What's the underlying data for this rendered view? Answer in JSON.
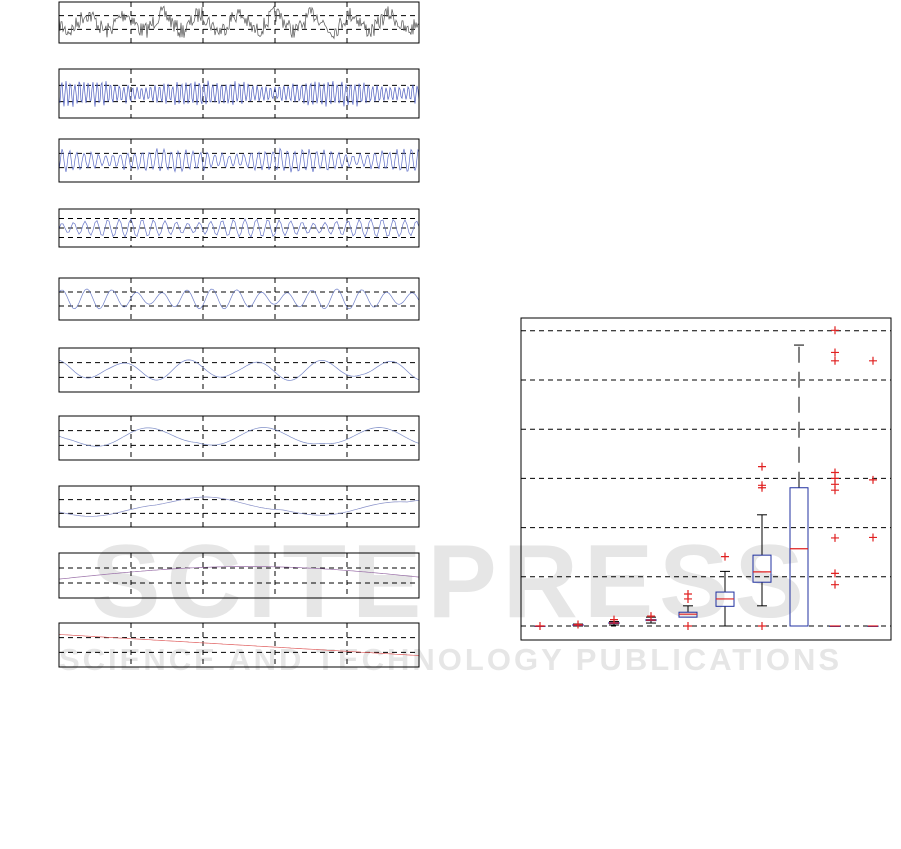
{
  "watermark": {
    "brand": "SCITEPRESS",
    "tagline": "SCIENCE AND TECHNOLOGY PUBLICATIONS"
  },
  "chart_data": [
    {
      "type": "line",
      "title": "",
      "panels": [
        {
          "color": "#555555",
          "character": "raw signal, high frequency"
        },
        {
          "color": "#5060c0",
          "character": "detail, high frequency"
        },
        {
          "color": "#6070c8",
          "character": "detail, medium-high frequency"
        },
        {
          "color": "#6a78c8",
          "character": "detail, medium frequency"
        },
        {
          "color": "#7080c8",
          "character": "detail, lower frequency"
        },
        {
          "color": "#7888c8",
          "character": "slow oscillation"
        },
        {
          "color": "#8090c8",
          "character": "slower oscillation"
        },
        {
          "color": "#8890c8",
          "character": "very slow trend"
        },
        {
          "color": "#9a70a8",
          "character": "smooth trend"
        },
        {
          "color": "#e06060",
          "character": "residual trend, decreasing"
        }
      ],
      "grid": true
    },
    {
      "type": "boxplot",
      "title": "",
      "xlabel": "",
      "ylabel": "",
      "ylim": [
        -0.2,
        6.4
      ],
      "grid": true,
      "box_color": "#2030a0",
      "median_color": "#e02020",
      "outlier_color": "#e02020",
      "boxes": [
        {
          "q1": 0,
          "median": 0,
          "q3": 0,
          "low": 0,
          "high": 0,
          "outliers": [
            0
          ]
        },
        {
          "q1": 0.01,
          "median": 0.02,
          "q3": 0.03,
          "low": 0,
          "high": 0.04,
          "outliers": [
            0.03
          ]
        },
        {
          "q1": 0.05,
          "median": 0.06,
          "q3": 0.07,
          "low": 0.02,
          "high": 0.09,
          "outliers": [
            0.13
          ]
        },
        {
          "q1": 0.11,
          "median": 0.12,
          "q3": 0.13,
          "low": 0.06,
          "high": 0.18,
          "outliers": [
            0.2
          ]
        },
        {
          "q1": 0.18,
          "median": 0.24,
          "q3": 0.28,
          "low": 0.18,
          "high": 0.41,
          "outliers": [
            0,
            0.55,
            0.65
          ]
        },
        {
          "q1": 0.4,
          "median": 0.55,
          "q3": 0.69,
          "low": 0,
          "high": 1.11,
          "outliers": [
            1.41
          ]
        },
        {
          "q1": 0.89,
          "median": 1.1,
          "q3": 1.44,
          "low": 0.41,
          "high": 2.26,
          "outliers": [
            0,
            2.81,
            2.86,
            3.24
          ]
        },
        {
          "q1": 0,
          "median": 1.57,
          "q3": 2.81,
          "low": 0,
          "high": 5.71,
          "outliers": []
        },
        {
          "q1": 0,
          "median": 0,
          "q3": 0,
          "low": 0,
          "high": 0,
          "outliers": [
            0.84,
            1.07,
            1.79,
            2.76,
            2.88,
            3.0,
            3.12,
            5.39,
            5.56,
            6.01
          ]
        },
        {
          "q1": 0,
          "median": 0,
          "q3": 0,
          "low": 0,
          "high": 0,
          "outliers": [
            1.8,
            2.97,
            5.39
          ]
        }
      ]
    }
  ]
}
